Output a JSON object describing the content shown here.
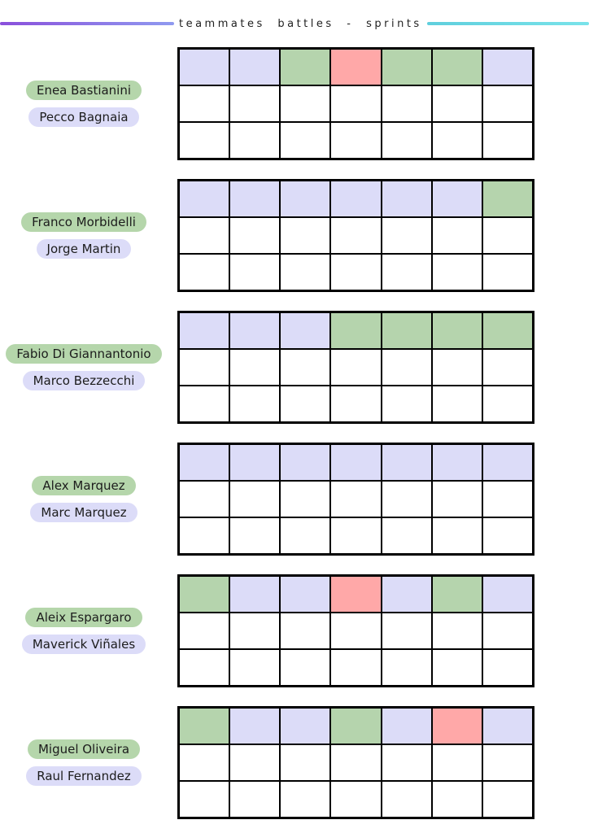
{
  "title": "teammates battles - sprints",
  "colors": {
    "title_text": "#1f1f1f",
    "line_left_start": "#8a4fdb",
    "line_left_end": "#8f9af0",
    "line_right_start": "#5fcfdd",
    "line_right_end": "#79e3ea",
    "pill_green": "#b5d6ab",
    "pill_purple": "#dcdcf8",
    "cell_green": "#b5d4ad",
    "cell_purple": "#dcdcf8",
    "cell_red": "#ffa8a8",
    "cell_empty": "#ffffff",
    "grid_border": "#000000"
  },
  "chart_data": {
    "type": "heatmap",
    "title": "teammates battles - sprints",
    "columns": 7,
    "rows": 3,
    "cell_states": [
      "green",
      "purple",
      "red",
      "empty"
    ],
    "pairs": [
      {
        "riders": [
          {
            "name": "Enea Bastianini",
            "color": "green"
          },
          {
            "name": "Pecco Bagnaia",
            "color": "purple"
          }
        ],
        "row1": [
          "purple",
          "purple",
          "green",
          "red",
          "green",
          "green",
          "purple"
        ]
      },
      {
        "riders": [
          {
            "name": "Franco Morbidelli",
            "color": "green"
          },
          {
            "name": "Jorge Martin",
            "color": "purple"
          }
        ],
        "row1": [
          "purple",
          "purple",
          "purple",
          "purple",
          "purple",
          "purple",
          "green"
        ]
      },
      {
        "riders": [
          {
            "name": "Fabio Di Giannantonio",
            "color": "green"
          },
          {
            "name": "Marco Bezzecchi",
            "color": "purple"
          }
        ],
        "row1": [
          "purple",
          "purple",
          "purple",
          "green",
          "green",
          "green",
          "green"
        ]
      },
      {
        "riders": [
          {
            "name": "Alex Marquez",
            "color": "green"
          },
          {
            "name": "Marc Marquez",
            "color": "purple"
          }
        ],
        "row1": [
          "purple",
          "purple",
          "purple",
          "purple",
          "purple",
          "purple",
          "purple"
        ]
      },
      {
        "riders": [
          {
            "name": "Aleix Espargaro",
            "color": "green"
          },
          {
            "name": "Maverick Viñales",
            "color": "purple"
          }
        ],
        "row1": [
          "green",
          "purple",
          "purple",
          "red",
          "purple",
          "green",
          "purple"
        ]
      },
      {
        "riders": [
          {
            "name": "Miguel Oliveira",
            "color": "green"
          },
          {
            "name": "Raul Fernandez",
            "color": "purple"
          }
        ],
        "row1": [
          "green",
          "purple",
          "purple",
          "green",
          "purple",
          "red",
          "purple"
        ]
      }
    ]
  }
}
